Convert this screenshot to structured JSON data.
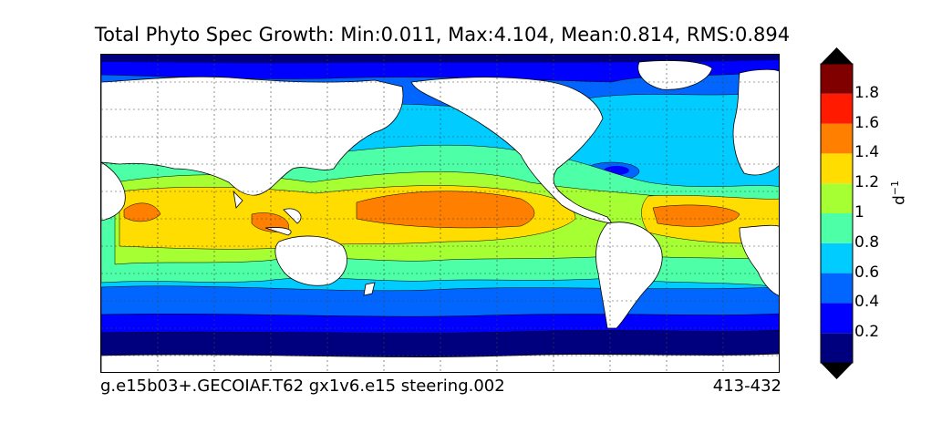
{
  "title": "Total Phyto Spec Growth: Min:0.011, Max:4.104, Mean:0.814, RMS:0.894",
  "footer": {
    "case_name": "g.e15b03+.GECOIAF.T62 gx1v6.e15 steering.002",
    "years": "413-432"
  },
  "colorbar": {
    "unit": "d",
    "unit_exponent": "−1",
    "extend": "both",
    "tick_labels": [
      "0.2",
      "0.4",
      "0.6",
      "0.8",
      "1",
      "1.2",
      "1.4",
      "1.6",
      "1.8"
    ],
    "levels": [
      0.0,
      0.2,
      0.4,
      0.6,
      0.8,
      1.0,
      1.2,
      1.4,
      1.6,
      1.8,
      2.0
    ],
    "colors": [
      "#00007f",
      "#0000ff",
      "#0066ff",
      "#00ccff",
      "#4dffa6",
      "#a6ff33",
      "#ffdd00",
      "#ff7f00",
      "#ff1a00",
      "#800000"
    ],
    "extend_color": "#000000"
  },
  "colors": {
    "land": "#ffffff",
    "coast": "#000000",
    "grid": "#444444"
  }
}
